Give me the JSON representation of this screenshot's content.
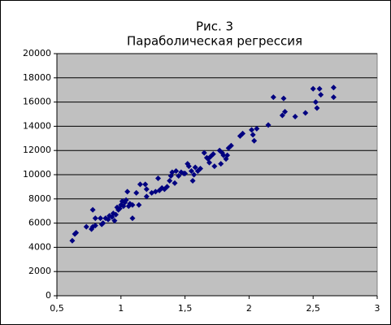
{
  "chart_data": {
    "type": "scatter",
    "title": "Рис. 3",
    "subtitle": "Параболическая регрессия",
    "color": "#000080",
    "plot_background": "#c0c0c0",
    "grid": true,
    "xlim": [
      0.5,
      3
    ],
    "ylim": [
      0,
      20000
    ],
    "xticks": [
      {
        "value": 0.5,
        "label": "0,5"
      },
      1,
      {
        "value": 1.5,
        "label": "1,5"
      },
      2,
      {
        "value": 2.5,
        "label": "2,5"
      },
      3
    ],
    "yticks": [
      0,
      2000,
      4000,
      6000,
      8000,
      10000,
      12000,
      14000,
      16000,
      18000,
      20000
    ],
    "x": [
      0.62,
      0.64,
      0.65,
      0.73,
      0.77,
      0.78,
      0.78,
      0.8,
      0.8,
      0.84,
      0.85,
      0.86,
      0.88,
      0.9,
      0.91,
      0.93,
      0.94,
      0.95,
      0.96,
      0.97,
      0.98,
      0.99,
      1.0,
      1.01,
      1.02,
      1.03,
      1.04,
      1.05,
      1.06,
      1.07,
      1.09,
      1.09,
      1.12,
      1.14,
      1.15,
      1.19,
      1.2,
      1.2,
      1.24,
      1.27,
      1.29,
      1.3,
      1.32,
      1.34,
      1.36,
      1.38,
      1.39,
      1.4,
      1.42,
      1.43,
      1.45,
      1.47,
      1.49,
      1.5,
      1.52,
      1.53,
      1.55,
      1.56,
      1.57,
      1.58,
      1.6,
      1.62,
      1.65,
      1.67,
      1.68,
      1.69,
      1.7,
      1.72,
      1.73,
      1.77,
      1.78,
      1.79,
      1.8,
      1.82,
      1.83,
      1.84,
      1.86,
      1.93,
      1.95,
      2.02,
      2.03,
      2.04,
      2.06,
      2.15,
      2.19,
      2.26,
      2.27,
      2.28,
      2.36,
      2.44,
      2.5,
      2.52,
      2.53,
      2.55,
      2.56,
      2.66,
      2.66
    ],
    "values": [
      4550,
      5100,
      5200,
      5700,
      5500,
      5700,
      7100,
      6400,
      5800,
      6400,
      5900,
      6000,
      6400,
      6300,
      6600,
      6500,
      6800,
      6200,
      6700,
      7300,
      7100,
      7200,
      7500,
      7800,
      7400,
      7700,
      7900,
      8600,
      7400,
      7600,
      7500,
      6400,
      8500,
      7500,
      9200,
      9200,
      8800,
      8200,
      8500,
      8600,
      9700,
      8700,
      8900,
      8800,
      9000,
      9500,
      9900,
      10200,
      9300,
      10300,
      9900,
      10200,
      10100,
      10100,
      10900,
      10700,
      10300,
      9500,
      10000,
      10600,
      10300,
      10500,
      11800,
      11400,
      11300,
      11000,
      11500,
      11700,
      10700,
      12000,
      10900,
      11800,
      11600,
      11300,
      11600,
      12200,
      12400,
      13200,
      13400,
      13700,
      13300,
      12800,
      13800,
      14100,
      16400,
      14900,
      16300,
      15200,
      14800,
      15100,
      17100,
      16000,
      15500,
      17100,
      16600,
      17200,
      16400
    ]
  }
}
